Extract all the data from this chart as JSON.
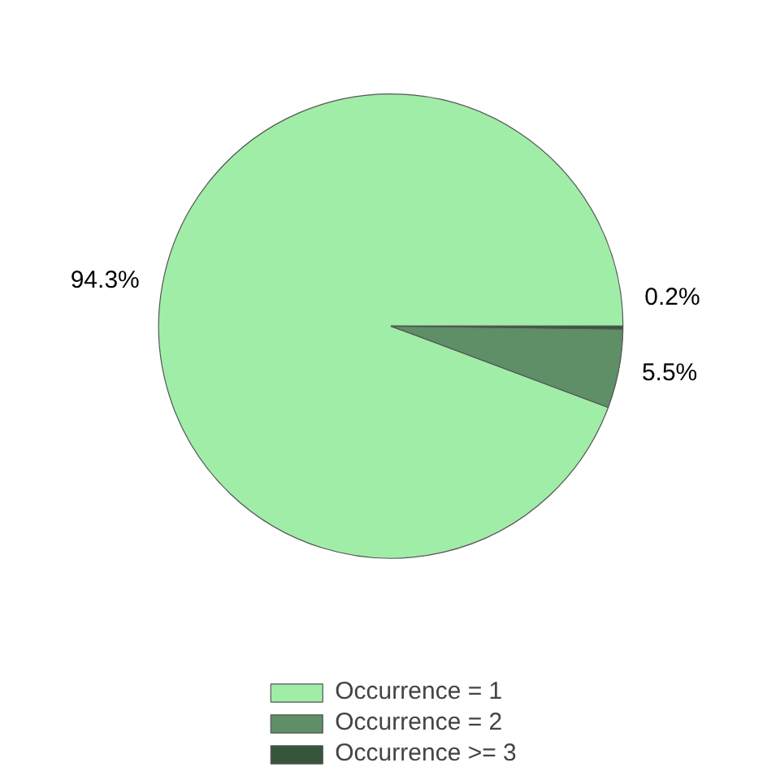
{
  "chart_data": {
    "type": "pie",
    "categories": [
      "Occurrence = 1",
      "Occurrence = 2",
      "Occurrence >= 3"
    ],
    "values": [
      94.3,
      5.5,
      0.2
    ],
    "colors": [
      "#a0eda8",
      "#5e8f66",
      "#36563c"
    ],
    "value_labels": [
      "94.3%",
      "5.5%",
      "0.2%"
    ],
    "legend": "bottom"
  }
}
